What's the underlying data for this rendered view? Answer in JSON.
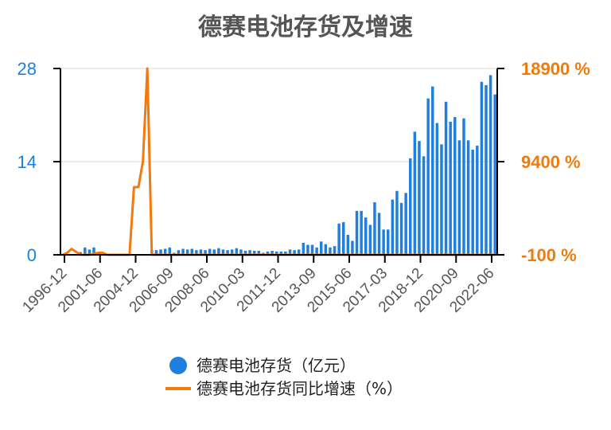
{
  "colors": {
    "bar": "#1e7fe0",
    "line": "#f07a0e",
    "grid": "#d9d9d9",
    "axis": "#000000",
    "title": "#555555"
  },
  "chart_data": {
    "type": "bar",
    "title": "德赛电池存货及增速",
    "grid": true,
    "legend_position": "bottom",
    "left_axis": {
      "ylim": [
        0,
        28
      ],
      "ticks": [
        "28",
        "14",
        "0"
      ]
    },
    "right_axis": {
      "ylim": [
        -100,
        18900
      ],
      "ticks": [
        "18900 %",
        "9400 %",
        "-100 %"
      ]
    },
    "x_tick_labels": [
      "1996-12",
      "2001-06",
      "2004-12",
      "2006-09",
      "2008-06",
      "2010-03",
      "2011-12",
      "2013-09",
      "2015-06",
      "2017-03",
      "2018-12",
      "2020-09",
      "2022-06"
    ],
    "series": [
      {
        "name": "德赛电池存货（亿元）",
        "kind": "bar",
        "axis": "left",
        "values": [
          0.0,
          0.0,
          0.0,
          0.0,
          0.4,
          1.1,
          0.8,
          1.1,
          0.0,
          0.0,
          0.0,
          0.0,
          0.0,
          0.0,
          0.0,
          0.0,
          0.0,
          0.0,
          0.0,
          0.0,
          0.7,
          0.7,
          0.8,
          0.9,
          1.1,
          0.3,
          0.7,
          0.9,
          0.8,
          0.9,
          0.7,
          0.8,
          0.7,
          0.9,
          0.8,
          1.0,
          0.8,
          0.7,
          0.8,
          1.0,
          0.8,
          0.6,
          0.7,
          0.6,
          0.6,
          0.3,
          0.5,
          0.6,
          0.5,
          0.5,
          0.5,
          0.8,
          0.7,
          0.8,
          1.8,
          1.5,
          1.5,
          1.1,
          2.0,
          1.6,
          1.1,
          1.3,
          4.7,
          4.9,
          3.0,
          2.1,
          6.6,
          6.6,
          5.6,
          4.5,
          7.9,
          6.3,
          3.8,
          3.8,
          8.3,
          9.6,
          7.8,
          9.3,
          14.5,
          18.5,
          17.1,
          14.8,
          23.5,
          25.3,
          19.8,
          16.6,
          23.0,
          20.0,
          20.7,
          17.2,
          20.5,
          17.2,
          15.8,
          16.4,
          26.0,
          25.5,
          27.0,
          24.1
        ]
      },
      {
        "name": "德赛电池存货同比增速（%）",
        "kind": "line",
        "axis": "right",
        "values": [
          -100,
          100,
          500,
          200,
          -100,
          -100,
          -100,
          0,
          100,
          100,
          -100,
          -100,
          -100,
          -100,
          -100,
          -100,
          6800,
          6800,
          9400,
          18900,
          -100,
          -100,
          -100,
          -100,
          -100,
          -100,
          -100,
          -100,
          -100,
          -100,
          -100,
          -100,
          -100,
          -100,
          -100,
          -100,
          -100,
          -100,
          -100,
          -100,
          -100,
          -100,
          -100,
          -100,
          -100,
          -100,
          -100,
          -100,
          -100,
          -100,
          -100,
          -100,
          -100,
          -100,
          -100,
          -100,
          -100,
          -100,
          -100,
          -100,
          -100,
          -100,
          -100,
          -100,
          -100,
          -100,
          -100,
          -100,
          -100,
          -100,
          -100,
          -100,
          -100,
          -100,
          -100,
          -100,
          -100,
          -100,
          -100,
          -100,
          -100,
          -100,
          -100,
          -100,
          -100,
          -100,
          -100,
          -100,
          -100,
          -100,
          -100,
          -100,
          -100,
          -100,
          -100,
          -100,
          -100,
          -100
        ]
      }
    ]
  }
}
